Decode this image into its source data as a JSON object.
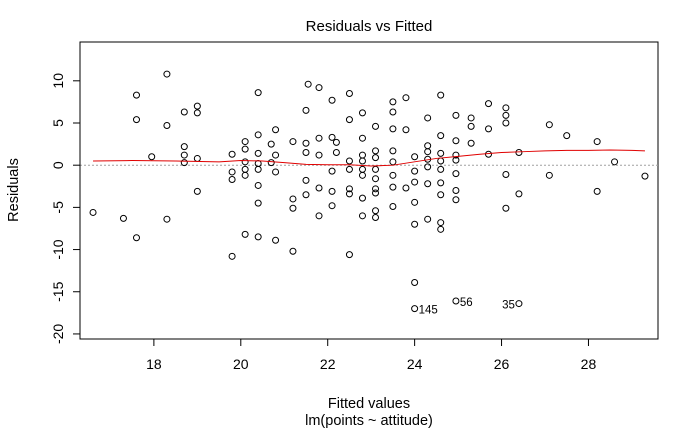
{
  "chart_data": {
    "type": "scatter",
    "title": "Residuals vs Fitted",
    "xlabel": "Fitted values",
    "subtitle": "lm(points ~ attitude)",
    "ylabel": "Residuals",
    "xlim": [
      16.3,
      29.6
    ],
    "ylim": [
      -20.6,
      14.6
    ],
    "xticks": [
      18,
      20,
      22,
      24,
      26,
      28
    ],
    "yticks": [
      -20,
      -15,
      -10,
      -5,
      0,
      5,
      10
    ],
    "grid": false,
    "reference_line": {
      "y": 0,
      "style": "dotted",
      "color": "#a0a0a0"
    },
    "point_color": "#000000",
    "smooth_color": "#e00000",
    "points": [
      [
        16.6,
        -5.6
      ],
      [
        17.3,
        -6.3
      ],
      [
        17.6,
        8.3
      ],
      [
        17.6,
        5.4
      ],
      [
        17.6,
        -8.6
      ],
      [
        17.95,
        1.0
      ],
      [
        18.3,
        10.8
      ],
      [
        18.3,
        4.7
      ],
      [
        18.3,
        -6.4
      ],
      [
        18.7,
        6.3
      ],
      [
        18.7,
        2.2
      ],
      [
        18.7,
        1.2
      ],
      [
        18.7,
        0.3
      ],
      [
        19.0,
        7.0
      ],
      [
        19.0,
        6.2
      ],
      [
        19.0,
        0.8
      ],
      [
        19.0,
        -3.1
      ],
      [
        19.8,
        1.3
      ],
      [
        19.8,
        -0.8
      ],
      [
        19.8,
        -1.7
      ],
      [
        19.8,
        -10.8
      ],
      [
        20.1,
        2.8
      ],
      [
        20.1,
        1.9
      ],
      [
        20.1,
        0.4
      ],
      [
        20.1,
        -0.5
      ],
      [
        20.1,
        -1.2
      ],
      [
        20.1,
        -8.2
      ],
      [
        20.4,
        8.6
      ],
      [
        20.4,
        3.6
      ],
      [
        20.4,
        1.4
      ],
      [
        20.4,
        0.2
      ],
      [
        20.4,
        -0.5
      ],
      [
        20.4,
        -2.4
      ],
      [
        20.4,
        -4.5
      ],
      [
        20.4,
        -8.5
      ],
      [
        20.7,
        2.5
      ],
      [
        20.7,
        0.3
      ],
      [
        20.8,
        4.2
      ],
      [
        20.8,
        1.2
      ],
      [
        20.8,
        -0.8
      ],
      [
        20.8,
        -8.9
      ],
      [
        21.2,
        2.8
      ],
      [
        21.2,
        -4.0
      ],
      [
        21.2,
        -5.1
      ],
      [
        21.2,
        -10.2
      ],
      [
        21.5,
        6.5
      ],
      [
        21.5,
        2.6
      ],
      [
        21.5,
        1.5
      ],
      [
        21.5,
        -1.8
      ],
      [
        21.5,
        -3.5
      ],
      [
        21.55,
        9.6
      ],
      [
        21.8,
        9.2
      ],
      [
        21.8,
        3.2
      ],
      [
        21.8,
        1.2
      ],
      [
        21.8,
        -2.7
      ],
      [
        21.8,
        -6.0
      ],
      [
        22.1,
        7.7
      ],
      [
        22.1,
        3.3
      ],
      [
        22.1,
        -0.7
      ],
      [
        22.1,
        -3.1
      ],
      [
        22.1,
        -4.8
      ],
      [
        22.2,
        2.7
      ],
      [
        22.2,
        1.5
      ],
      [
        22.5,
        8.5
      ],
      [
        22.5,
        5.4
      ],
      [
        22.5,
        0.5
      ],
      [
        22.5,
        -0.5
      ],
      [
        22.5,
        -2.8
      ],
      [
        22.5,
        -3.4
      ],
      [
        22.5,
        -10.6
      ],
      [
        22.8,
        6.2
      ],
      [
        22.8,
        3.2
      ],
      [
        22.8,
        1.2
      ],
      [
        22.8,
        0.5
      ],
      [
        22.8,
        -0.5
      ],
      [
        22.8,
        -1.2
      ],
      [
        22.8,
        -3.9
      ],
      [
        22.8,
        -6.0
      ],
      [
        23.1,
        4.6
      ],
      [
        23.1,
        1.7
      ],
      [
        23.1,
        0.9
      ],
      [
        23.1,
        -0.5
      ],
      [
        23.1,
        -1.6
      ],
      [
        23.1,
        -2.8
      ],
      [
        23.1,
        -3.3
      ],
      [
        23.1,
        -5.4
      ],
      [
        23.1,
        -6.2
      ],
      [
        23.5,
        7.5
      ],
      [
        23.5,
        6.3
      ],
      [
        23.5,
        4.3
      ],
      [
        23.5,
        1.7
      ],
      [
        23.5,
        0.4
      ],
      [
        23.5,
        -1.2
      ],
      [
        23.5,
        -2.6
      ],
      [
        23.5,
        -4.9
      ],
      [
        23.8,
        8.0
      ],
      [
        23.8,
        4.2
      ],
      [
        23.8,
        -2.7
      ],
      [
        24.0,
        1.0
      ],
      [
        24.0,
        -0.7
      ],
      [
        24.0,
        -2.0
      ],
      [
        24.0,
        -4.4
      ],
      [
        24.0,
        -7.0
      ],
      [
        24.0,
        -13.9
      ],
      [
        24.0,
        -17.0
      ],
      [
        24.3,
        5.6
      ],
      [
        24.3,
        2.3
      ],
      [
        24.3,
        1.6
      ],
      [
        24.3,
        0.7
      ],
      [
        24.3,
        -0.2
      ],
      [
        24.3,
        -2.2
      ],
      [
        24.3,
        -6.4
      ],
      [
        24.6,
        8.3
      ],
      [
        24.6,
        3.5
      ],
      [
        24.6,
        1.4
      ],
      [
        24.6,
        0.5
      ],
      [
        24.6,
        -0.5
      ],
      [
        24.6,
        -2.1
      ],
      [
        24.6,
        -3.5
      ],
      [
        24.6,
        -6.8
      ],
      [
        24.6,
        -7.6
      ],
      [
        24.95,
        5.9
      ],
      [
        24.95,
        2.9
      ],
      [
        24.95,
        1.2
      ],
      [
        24.95,
        0.6
      ],
      [
        24.95,
        -1.0
      ],
      [
        24.95,
        -3.0
      ],
      [
        24.95,
        -4.1
      ],
      [
        24.95,
        -16.1
      ],
      [
        25.3,
        5.6
      ],
      [
        25.3,
        4.6
      ],
      [
        25.3,
        2.6
      ],
      [
        25.7,
        7.3
      ],
      [
        25.7,
        4.3
      ],
      [
        25.7,
        1.3
      ],
      [
        26.1,
        6.8
      ],
      [
        26.1,
        5.9
      ],
      [
        26.1,
        5.0
      ],
      [
        26.1,
        -1.1
      ],
      [
        26.1,
        -5.1
      ],
      [
        26.4,
        1.5
      ],
      [
        26.4,
        -3.4
      ],
      [
        26.4,
        -16.4
      ],
      [
        27.1,
        4.8
      ],
      [
        27.1,
        -1.2
      ],
      [
        27.5,
        3.5
      ],
      [
        28.2,
        2.8
      ],
      [
        28.2,
        -3.1
      ],
      [
        28.6,
        0.4
      ],
      [
        29.3,
        -1.3
      ]
    ],
    "smooth": [
      [
        16.6,
        0.5
      ],
      [
        17.5,
        0.55
      ],
      [
        18.5,
        0.5
      ],
      [
        19.5,
        0.4
      ],
      [
        20.0,
        0.55
      ],
      [
        20.5,
        0.5
      ],
      [
        21.0,
        0.3
      ],
      [
        21.5,
        0.1
      ],
      [
        22.0,
        0.05
      ],
      [
        22.5,
        0.05
      ],
      [
        23.0,
        -0.1
      ],
      [
        23.5,
        0.0
      ],
      [
        24.0,
        0.4
      ],
      [
        24.5,
        0.8
      ],
      [
        25.0,
        1.05
      ],
      [
        25.5,
        1.3
      ],
      [
        26.0,
        1.5
      ],
      [
        26.5,
        1.6
      ],
      [
        27.0,
        1.7
      ],
      [
        27.5,
        1.75
      ],
      [
        28.0,
        1.75
      ],
      [
        28.5,
        1.8
      ],
      [
        29.0,
        1.75
      ],
      [
        29.3,
        1.7
      ]
    ],
    "point_labels": [
      {
        "text": "145",
        "x": 24.0,
        "y": -17.0,
        "side": "right"
      },
      {
        "text": "56",
        "x": 24.95,
        "y": -16.1,
        "side": "right"
      },
      {
        "text": "35",
        "x": 26.4,
        "y": -16.4,
        "side": "left"
      }
    ]
  }
}
